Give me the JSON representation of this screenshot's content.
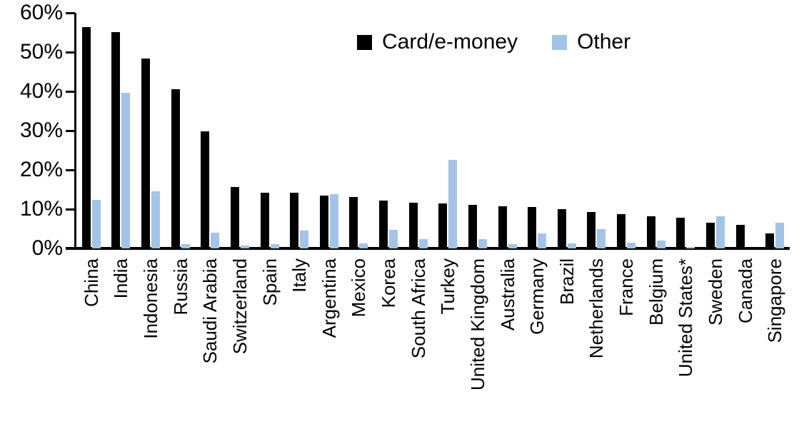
{
  "chart_data": {
    "type": "bar",
    "title": "",
    "xlabel": "",
    "ylabel": "",
    "ylim": [
      0,
      60
    ],
    "ytick_labels": [
      "0%",
      "10%",
      "20%",
      "30%",
      "40%",
      "50%",
      "60%"
    ],
    "grid": false,
    "legend_position": "top-center",
    "categories": [
      "China",
      "India",
      "Indonesia",
      "Russia",
      "Saudi Arabia",
      "Switzerland",
      "Spain",
      "Italy",
      "Argentina",
      "Mexico",
      "Korea",
      "South Africa",
      "Turkey",
      "United Kingdom",
      "Australia",
      "Germany",
      "Brazil",
      "Netherlands",
      "France",
      "Belgium",
      "United States*",
      "Sweden",
      "Canada",
      "Singapore"
    ],
    "series": [
      {
        "name": "Card/e-money",
        "color": "#000000",
        "values": [
          56.3,
          55.1,
          48.3,
          40.5,
          29.8,
          15.6,
          14.2,
          14.1,
          13.4,
          13.0,
          12.2,
          11.7,
          11.5,
          11.1,
          10.8,
          10.6,
          10.0,
          9.3,
          8.7,
          8.2,
          7.8,
          6.5,
          6.0,
          3.9
        ]
      },
      {
        "name": "Other",
        "color": "#A2C4E6",
        "values": [
          12.3,
          39.7,
          14.5,
          1.0,
          4.0,
          0.8,
          1.0,
          4.6,
          13.8,
          1.3,
          4.7,
          2.4,
          22.5,
          2.3,
          1.1,
          3.9,
          1.2,
          4.9,
          1.5,
          2.0,
          0.3,
          8.1,
          0.0,
          6.6
        ]
      }
    ]
  }
}
